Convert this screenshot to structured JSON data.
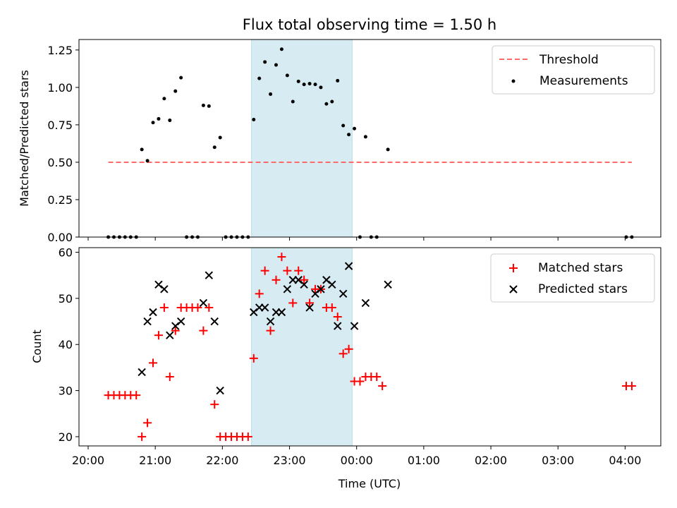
{
  "chart_data": [
    {
      "type": "scatter",
      "title": "Flux total observing time = 1.50 h",
      "xlabel": "",
      "ylabel": "Matched/Predicted stars",
      "xlim": [
        "20:00",
        "04:30"
      ],
      "ylim": [
        0,
        1.32
      ],
      "yticks": [
        "0.00",
        "0.25",
        "0.50",
        "0.75",
        "1.00",
        "1.25"
      ],
      "highlight_span": [
        "22:26",
        "23:56"
      ],
      "legend": {
        "location": "upper right",
        "threshold": "Threshold",
        "measurements": "Measurements"
      },
      "threshold": {
        "value": 0.5,
        "x_start": "20:18",
        "x_end": "04:06",
        "color": "#ff6b6b"
      },
      "series": [
        {
          "name": "Measurements",
          "color": "#000000",
          "points": [
            [
              "20:18",
              0
            ],
            [
              "20:23",
              0
            ],
            [
              "20:28",
              0
            ],
            [
              "20:33",
              0
            ],
            [
              "20:38",
              0
            ],
            [
              "20:43",
              0
            ],
            [
              "20:48",
              0.585
            ],
            [
              "20:53",
              0.51
            ],
            [
              "20:58",
              0.765
            ],
            [
              "21:03",
              0.79
            ],
            [
              "21:08",
              0.925
            ],
            [
              "21:13",
              0.78
            ],
            [
              "21:18",
              0.975
            ],
            [
              "21:23",
              1.065
            ],
            [
              "21:28",
              0
            ],
            [
              "21:33",
              0
            ],
            [
              "21:38",
              0
            ],
            [
              "21:43",
              0.88
            ],
            [
              "21:48",
              0.875
            ],
            [
              "21:53",
              0.6
            ],
            [
              "21:58",
              0.665
            ],
            [
              "22:03",
              0
            ],
            [
              "22:08",
              0
            ],
            [
              "22:13",
              0
            ],
            [
              "22:18",
              0
            ],
            [
              "22:23",
              0
            ],
            [
              "22:28",
              0.785
            ],
            [
              "22:33",
              1.06
            ],
            [
              "22:38",
              1.17
            ],
            [
              "22:43",
              0.955
            ],
            [
              "22:48",
              1.15
            ],
            [
              "22:53",
              1.255
            ],
            [
              "22:58",
              1.08
            ],
            [
              "23:03",
              0.905
            ],
            [
              "23:08",
              1.04
            ],
            [
              "23:13",
              1.02
            ],
            [
              "23:18",
              1.025
            ],
            [
              "23:23",
              1.02
            ],
            [
              "23:28",
              1.0
            ],
            [
              "23:33",
              0.89
            ],
            [
              "23:38",
              0.905
            ],
            [
              "23:43",
              1.045
            ],
            [
              "23:48",
              0.745
            ],
            [
              "23:53",
              0.685
            ],
            [
              "23:58",
              0.725
            ],
            [
              "00:03",
              0
            ],
            [
              "00:08",
              0.67
            ],
            [
              "00:13",
              0
            ],
            [
              "00:18",
              0
            ],
            [
              "00:28",
              0.585
            ],
            [
              "04:01",
              0
            ],
            [
              "04:06",
              0
            ]
          ]
        }
      ]
    },
    {
      "type": "scatter",
      "title": "",
      "xlabel": "Time (UTC)",
      "ylabel": "Count",
      "xlim": [
        "20:00",
        "04:30"
      ],
      "ylim": [
        18,
        61
      ],
      "yticks": [
        "20",
        "30",
        "40",
        "50",
        "60"
      ],
      "xticks": [
        "20:00",
        "21:00",
        "22:00",
        "23:00",
        "00:00",
        "01:00",
        "02:00",
        "03:00",
        "04:00"
      ],
      "highlight_span": [
        "22:26",
        "23:56"
      ],
      "legend": {
        "location": "upper right",
        "matched": "Matched stars",
        "predicted": "Predicted stars"
      },
      "series": [
        {
          "name": "Matched stars",
          "marker": "plus",
          "color": "#ff0000",
          "points": [
            [
              "20:18",
              29
            ],
            [
              "20:23",
              29
            ],
            [
              "20:28",
              29
            ],
            [
              "20:33",
              29
            ],
            [
              "20:38",
              29
            ],
            [
              "20:43",
              29
            ],
            [
              "20:48",
              20
            ],
            [
              "20:53",
              23
            ],
            [
              "20:58",
              36
            ],
            [
              "21:03",
              42
            ],
            [
              "21:08",
              48
            ],
            [
              "21:13",
              33
            ],
            [
              "21:18",
              43
            ],
            [
              "21:23",
              48
            ],
            [
              "21:28",
              48
            ],
            [
              "21:33",
              48
            ],
            [
              "21:38",
              48
            ],
            [
              "21:43",
              43
            ],
            [
              "21:48",
              48
            ],
            [
              "21:53",
              27
            ],
            [
              "21:58",
              20
            ],
            [
              "22:03",
              20
            ],
            [
              "22:08",
              20
            ],
            [
              "22:13",
              20
            ],
            [
              "22:18",
              20
            ],
            [
              "22:23",
              20
            ],
            [
              "22:28",
              37
            ],
            [
              "22:33",
              51
            ],
            [
              "22:38",
              56
            ],
            [
              "22:43",
              43
            ],
            [
              "22:48",
              54
            ],
            [
              "22:53",
              59
            ],
            [
              "22:58",
              56
            ],
            [
              "23:03",
              49
            ],
            [
              "23:08",
              56
            ],
            [
              "23:13",
              54
            ],
            [
              "23:18",
              49
            ],
            [
              "23:23",
              52
            ],
            [
              "23:28",
              52
            ],
            [
              "23:33",
              48
            ],
            [
              "23:38",
              48
            ],
            [
              "23:43",
              46
            ],
            [
              "23:48",
              38
            ],
            [
              "23:53",
              39
            ],
            [
              "23:58",
              32
            ],
            [
              "00:03",
              32
            ],
            [
              "00:08",
              33
            ],
            [
              "00:13",
              33
            ],
            [
              "00:18",
              33
            ],
            [
              "00:23",
              31
            ],
            [
              "04:01",
              31
            ],
            [
              "04:06",
              31
            ]
          ]
        },
        {
          "name": "Predicted stars",
          "marker": "x",
          "color": "#000000",
          "points": [
            [
              "20:48",
              34
            ],
            [
              "20:53",
              45
            ],
            [
              "20:58",
              47
            ],
            [
              "21:03",
              53
            ],
            [
              "21:08",
              52
            ],
            [
              "21:13",
              42
            ],
            [
              "21:18",
              44
            ],
            [
              "21:23",
              45
            ],
            [
              "21:43",
              49
            ],
            [
              "21:48",
              55
            ],
            [
              "21:53",
              45
            ],
            [
              "21:58",
              30
            ],
            [
              "22:28",
              47
            ],
            [
              "22:33",
              48
            ],
            [
              "22:38",
              48
            ],
            [
              "22:43",
              45
            ],
            [
              "22:48",
              47
            ],
            [
              "22:53",
              47
            ],
            [
              "22:58",
              52
            ],
            [
              "23:03",
              54
            ],
            [
              "23:08",
              54
            ],
            [
              "23:13",
              53
            ],
            [
              "23:18",
              48
            ],
            [
              "23:23",
              51
            ],
            [
              "23:28",
              52
            ],
            [
              "23:33",
              54
            ],
            [
              "23:38",
              53
            ],
            [
              "23:43",
              44
            ],
            [
              "23:48",
              51
            ],
            [
              "23:53",
              57
            ],
            [
              "23:58",
              44
            ],
            [
              "00:08",
              49
            ],
            [
              "00:28",
              53
            ]
          ]
        }
      ]
    }
  ]
}
